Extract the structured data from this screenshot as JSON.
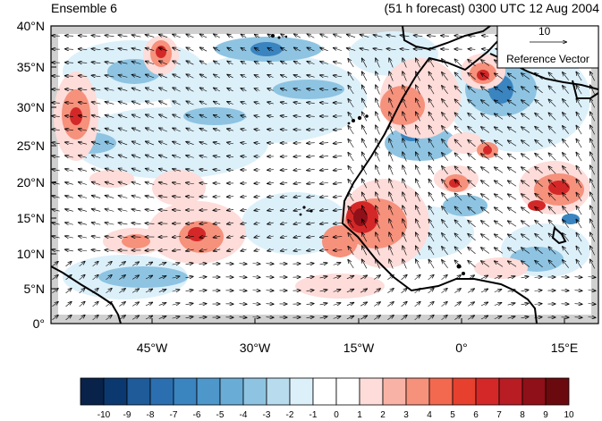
{
  "header": {
    "title_left": "Ensemble 6",
    "title_right": "(51 h forecast) 0300 UTC 12 Aug 2004"
  },
  "axes": {
    "lat_labels": [
      "40°N",
      "35°N",
      "30°N",
      "25°N",
      "20°N",
      "15°N",
      "10°N",
      "5°N",
      "0°"
    ],
    "lon_labels": [
      "45°W",
      "30°W",
      "15°W",
      "0°",
      "15°E"
    ]
  },
  "reference_vector": {
    "value": "10",
    "label": "Reference Vector"
  },
  "colorbar": {
    "labels": [
      "-10",
      "-9",
      "-8",
      "-7",
      "-6",
      "-5",
      "-4",
      "-3",
      "-2",
      "-1",
      "0",
      "1",
      "2",
      "3",
      "4",
      "5",
      "6",
      "7",
      "8",
      "9",
      "10"
    ],
    "colors": [
      "#08224a",
      "#0c3870",
      "#1f5a99",
      "#2b6fb0",
      "#3a84c0",
      "#4d97cb",
      "#69acd6",
      "#8ec4e2",
      "#b8dcee",
      "#dcf0fa",
      "#ffffff",
      "#ffffff",
      "#fddcd9",
      "#f9b3a6",
      "#f6917c",
      "#f2694f",
      "#e7402f",
      "#d42828",
      "#b81d24",
      "#8f1018",
      "#6a0a0e"
    ]
  },
  "colors": {
    "land_mask": "#d0d0d0",
    "coast": "#000000"
  }
}
